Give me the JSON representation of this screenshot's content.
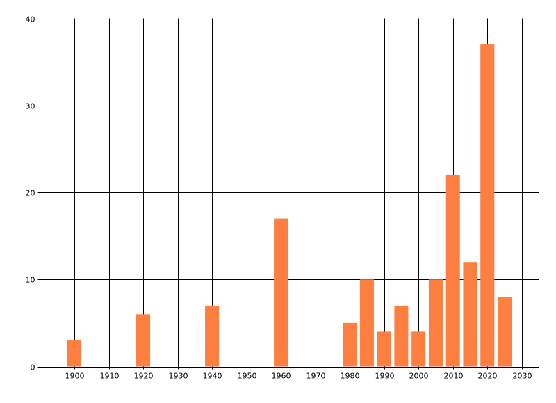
{
  "chart_data": {
    "type": "bar",
    "title": "",
    "xlabel": "",
    "ylabel": "",
    "x": [
      1900,
      1920,
      1940,
      1960,
      1980,
      1985,
      1990,
      1995,
      2000,
      2005,
      2010,
      2015,
      2020,
      2025
    ],
    "values": [
      3,
      6,
      7,
      17,
      5,
      10,
      4,
      7,
      4,
      10,
      22,
      12,
      37,
      8
    ],
    "xlim": [
      1890,
      2035
    ],
    "ylim": [
      0,
      40
    ],
    "x_ticks": [
      1900,
      1910,
      1920,
      1930,
      1940,
      1950,
      1960,
      1970,
      1980,
      1990,
      2000,
      2010,
      2020,
      2030
    ],
    "y_ticks": [
      0,
      10,
      20,
      30,
      40
    ],
    "grid": true,
    "legend": "none",
    "bar_color": "#FF7F41"
  }
}
